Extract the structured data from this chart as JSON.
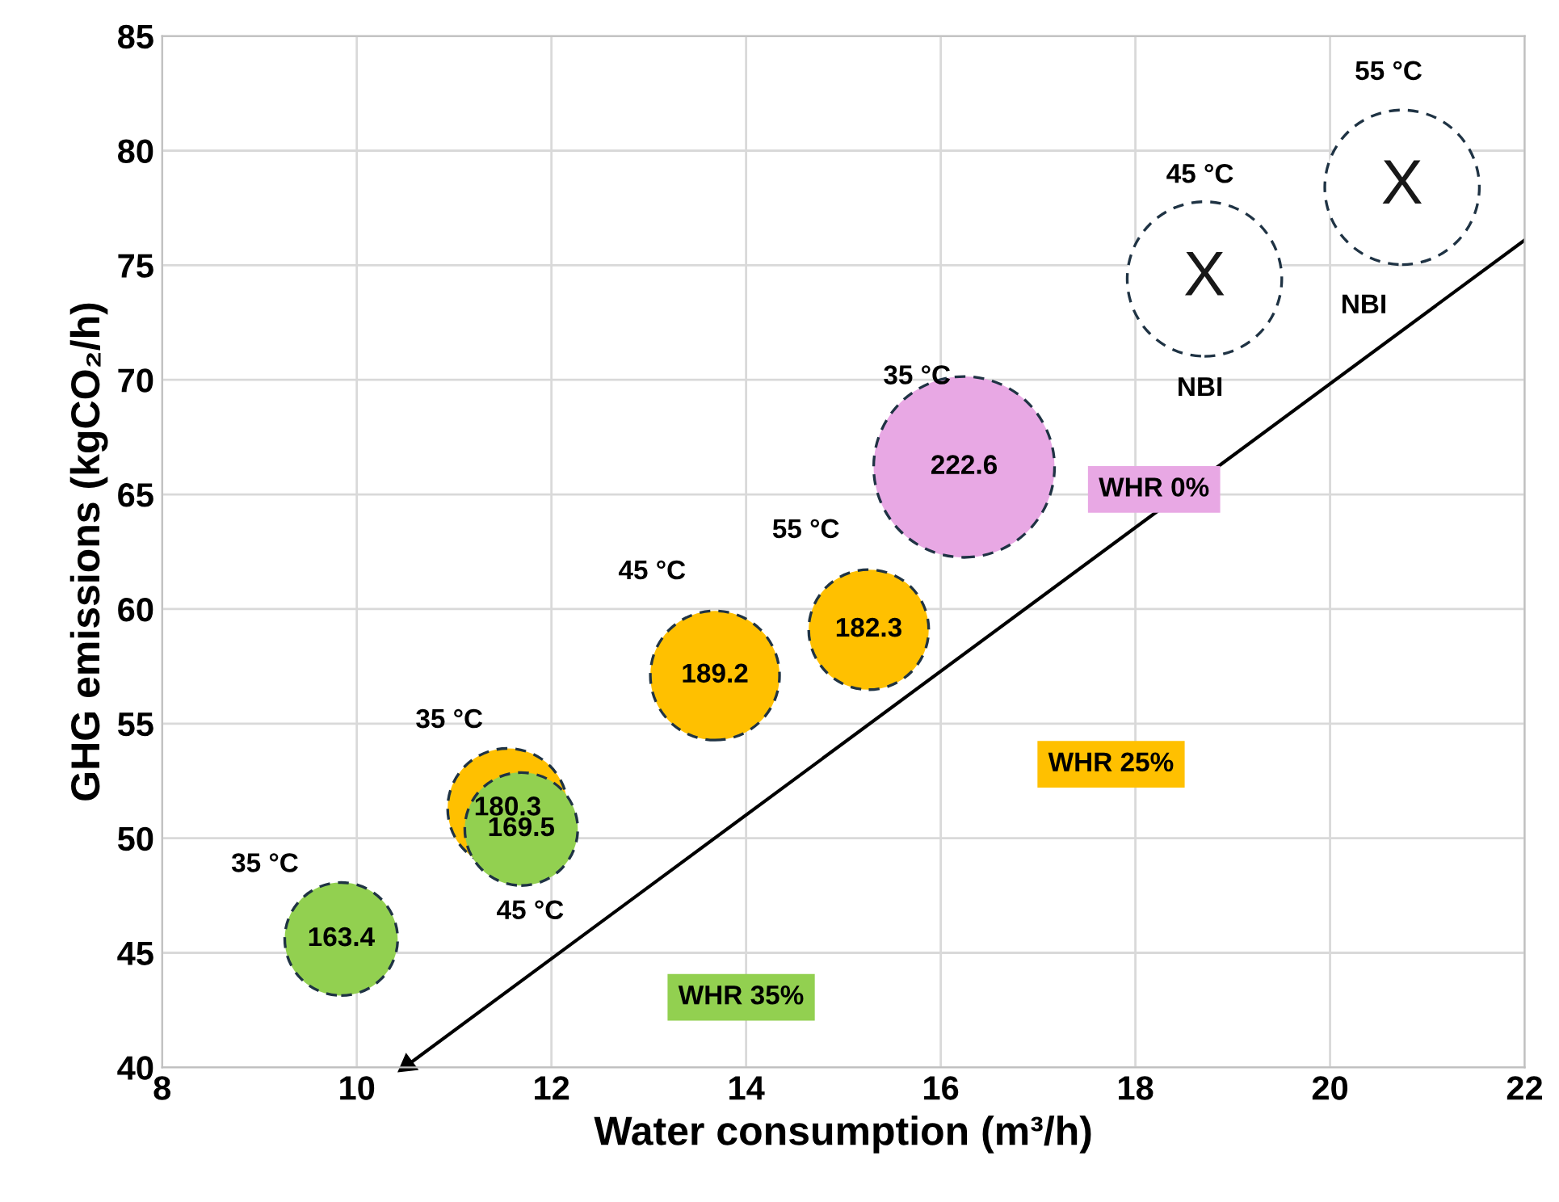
{
  "chart_data": {
    "type": "bubble",
    "xlabel": "Water consumption (m³/h)",
    "ylabel": "GHG emissions (kgCO₂/h)",
    "xlim": [
      8,
      22
    ],
    "xticks": [
      8,
      10,
      12,
      14,
      16,
      18,
      20,
      22
    ],
    "ylim": [
      40,
      85
    ],
    "yticks": [
      40,
      45,
      50,
      55,
      60,
      65,
      70,
      75,
      80,
      85
    ],
    "grid": true,
    "legend": false,
    "series": [
      {
        "name": "WHR 0%",
        "color": "#e8a8e4",
        "x": [
          16.24
        ],
        "values": [
          66.2
        ],
        "sizes": [
          1
        ]
      },
      {
        "name": "WHR 25%",
        "color": "#ffc000",
        "x": [
          11.55,
          13.68,
          15.26
        ],
        "values": [
          51.3,
          57.1,
          59.1
        ],
        "sizes": [
          0.44,
          0.51,
          0.44
        ]
      },
      {
        "name": "WHR 35%",
        "color": "#92d050",
        "x": [
          9.84,
          11.69
        ],
        "values": [
          45.6,
          50.4
        ],
        "sizes": [
          0.39,
          0.39
        ]
      },
      {
        "color": "#ffffff",
        "x": [
          18.71,
          20.74
        ],
        "values": [
          74.4,
          78.4
        ],
        "sizes": [
          0.73,
          0.73
        ]
      },
      {
        "type": "line",
        "color": "#000000",
        "x": [
          22,
          10.52
        ],
        "values": [
          76.1,
          40.1
        ]
      }
    ],
    "annotations": [
      {
        "text": "222.6",
        "x": 16.24,
        "y": 66.2
      },
      {
        "text": "180.3",
        "x": 11.55,
        "y": 51.3
      },
      {
        "text": "189.2",
        "x": 13.68,
        "y": 57.1
      },
      {
        "text": "182.3",
        "x": 15.26,
        "y": 59.1
      },
      {
        "text": "163.4",
        "x": 9.84,
        "y": 45.6
      },
      {
        "text": "169.5",
        "x": 11.69,
        "y": 50.4
      },
      "X",
      "X",
      "35 °C",
      "45 °C",
      "35 °C",
      "45 °C",
      "55 °C",
      "35 °C",
      "45 °C",
      "NBI",
      "55 °C",
      "NBI"
    ]
  }
}
